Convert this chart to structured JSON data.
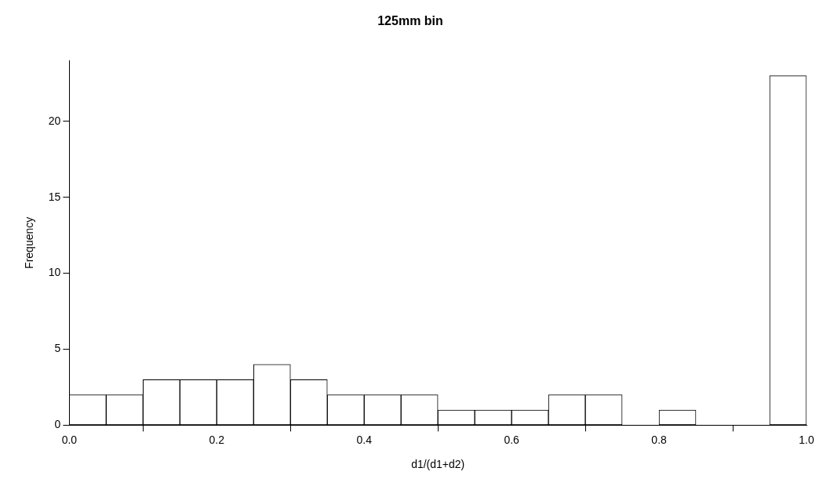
{
  "chart_data": {
    "type": "histogram",
    "title": "125mm bin",
    "xlabel": "d1/(d1+d2)",
    "ylabel": "Frequency",
    "bins": [
      0,
      0.05,
      0.1,
      0.15,
      0.2,
      0.25,
      0.3,
      0.35,
      0.4,
      0.45,
      0.5,
      0.55,
      0.6,
      0.65,
      0.7,
      0.75,
      0.8,
      0.85,
      0.9,
      0.95,
      1.0
    ],
    "values": [
      2,
      2,
      3,
      3,
      3,
      4,
      3,
      2,
      2,
      2,
      1,
      1,
      1,
      2,
      2,
      0,
      1,
      0,
      0,
      23
    ],
    "color": "#ffffff",
    "xlim": [
      0,
      1
    ],
    "xticks": [
      {
        "value": 0,
        "label": "0.0"
      },
      {
        "value": 0.2,
        "label": "0.2"
      },
      {
        "value": 0.4,
        "label": "0.4"
      },
      {
        "value": 0.6,
        "label": "0.6"
      },
      {
        "value": 0.8,
        "label": "0.8"
      },
      {
        "value": 1,
        "label": "1.0"
      }
    ],
    "ylim": [
      0,
      24
    ],
    "yticks": [
      0,
      5,
      10,
      15,
      20
    ],
    "grid": false,
    "legend": false
  }
}
